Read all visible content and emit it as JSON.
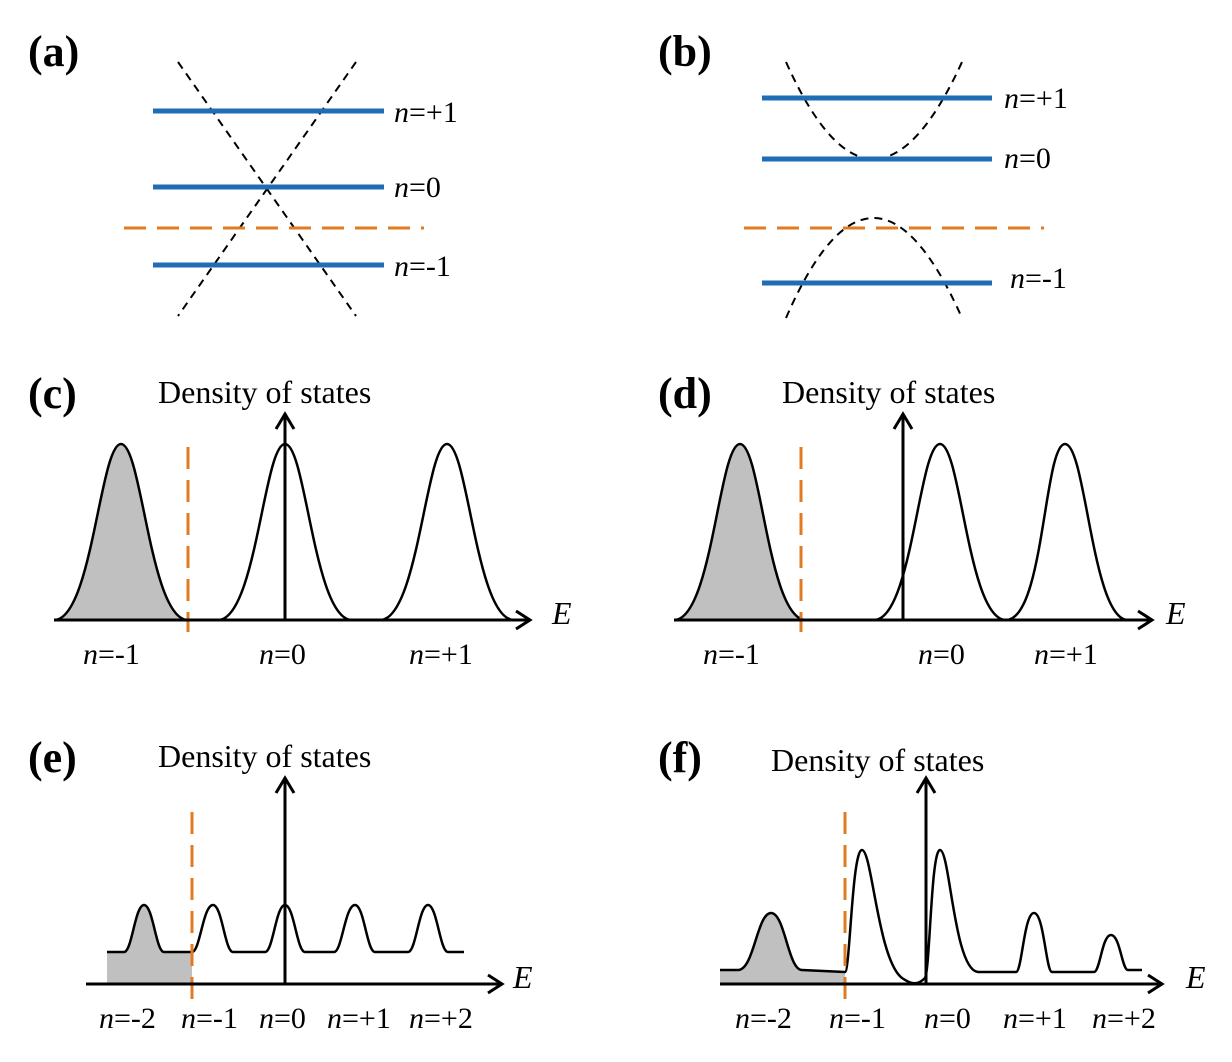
{
  "colors": {
    "level": "#1f6eb4",
    "fermi": "#e07b21",
    "shade": "#c0c0c0",
    "ink": "#000000"
  },
  "panels": {
    "a": {
      "label": "(a)",
      "levels": [
        {
          "n": "n",
          "v": "=+1"
        },
        {
          "n": "n",
          "v": "=0"
        },
        {
          "n": "n",
          "v": "=-1"
        }
      ]
    },
    "b": {
      "label": "(b)",
      "levels": [
        {
          "n": "n",
          "v": "=+1"
        },
        {
          "n": "n",
          "v": "=0"
        },
        {
          "n": "n",
          "v": "=-1"
        }
      ]
    },
    "c": {
      "label": "(c)",
      "ylabel": "Density of states",
      "xlabel": "E",
      "peaks": [
        {
          "n": "n",
          "v": "=-1"
        },
        {
          "n": "n",
          "v": "=0"
        },
        {
          "n": "n",
          "v": "=+1"
        }
      ]
    },
    "d": {
      "label": "(d)",
      "ylabel": "Density of states",
      "xlabel": "E",
      "peaks": [
        {
          "n": "n",
          "v": "=-1"
        },
        {
          "n": "n",
          "v": "=0"
        },
        {
          "n": "n",
          "v": "=+1"
        }
      ]
    },
    "e": {
      "label": "(e)",
      "ylabel": "Density of states",
      "xlabel": "E",
      "peaks": [
        {
          "n": "n",
          "v": "=-2"
        },
        {
          "n": "n",
          "v": "=-1"
        },
        {
          "n": "n",
          "v": "=0"
        },
        {
          "n": "n",
          "v": "=+1"
        },
        {
          "n": "n",
          "v": "=+2"
        }
      ]
    },
    "f": {
      "label": "(f)",
      "ylabel": "Density of states",
      "xlabel": "E",
      "peaks": [
        {
          "n": "n",
          "v": "=-2"
        },
        {
          "n": "n",
          "v": "=-1"
        },
        {
          "n": "n",
          "v": "=0"
        },
        {
          "n": "n",
          "v": "=+1"
        },
        {
          "n": "n",
          "v": "=+2"
        }
      ]
    }
  }
}
